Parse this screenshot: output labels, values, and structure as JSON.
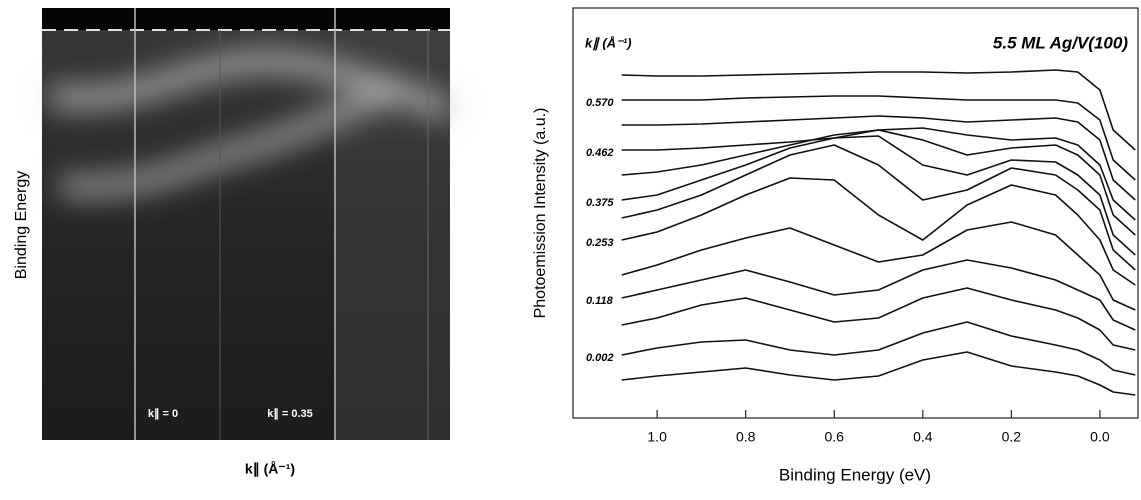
{
  "chart_data": [
    {
      "type": "image",
      "ylabel": "Binding Energy",
      "xlabel": "k∥ (Å⁻¹)",
      "annotations": [
        "k∥ = 0",
        "k∥ = 0.35"
      ]
    },
    {
      "type": "line",
      "title": "5.5 ML Ag/V(100)",
      "legend_title": "k∥ (Å⁻¹)",
      "xlabel": "Binding Energy (eV)",
      "ylabel": "Photoemission Intensity (a.u.)",
      "xlim": [
        1.19,
        -0.086
      ],
      "ylim": [
        0,
        41
      ],
      "xticks": [
        {
          "value": 1,
          "label": "1.0"
        },
        0.8,
        0.6,
        0.4,
        0.2,
        {
          "value": 0,
          "label": "0.0"
        }
      ],
      "color": "#111111",
      "x": [
        1.08,
        1.0,
        0.9,
        0.8,
        0.7,
        0.6,
        0.5,
        0.4,
        0.3,
        0.2,
        0.1,
        0.05,
        0.0,
        -0.03,
        -0.08
      ],
      "series": [
        {
          "values": [
            34.3,
            34.2,
            34.2,
            34.3,
            34.4,
            34.5,
            34.6,
            34.6,
            34.5,
            34.6,
            34.8,
            34.6,
            32.8,
            28.8,
            26.8
          ]
        },
        {
          "name": "0.570",
          "values": [
            31.8,
            31.8,
            31.8,
            32.0,
            32.1,
            32.2,
            32.2,
            32.0,
            31.8,
            31.8,
            31.8,
            31.5,
            29.8,
            25.8,
            23.8
          ]
        },
        {
          "values": [
            29.3,
            29.3,
            29.4,
            29.6,
            29.8,
            30.0,
            30.2,
            30.0,
            29.6,
            29.8,
            30.0,
            29.6,
            27.8,
            23.8,
            21.8
          ]
        },
        {
          "name": "0.462",
          "values": [
            26.8,
            26.8,
            27.0,
            27.3,
            27.6,
            28.0,
            28.8,
            29.0,
            28.3,
            27.8,
            28.0,
            27.3,
            25.3,
            21.8,
            19.8
          ]
        },
        {
          "values": [
            24.3,
            24.6,
            25.3,
            26.3,
            27.3,
            28.3,
            28.8,
            27.8,
            26.3,
            27.0,
            27.3,
            26.3,
            24.3,
            20.3,
            18.3
          ]
        },
        {
          "name": "0.375",
          "values": [
            21.8,
            22.3,
            23.8,
            25.3,
            27.0,
            28.0,
            28.2,
            25.3,
            24.3,
            25.8,
            25.6,
            24.3,
            22.3,
            18.3,
            16.3
          ]
        },
        {
          "values": [
            20.0,
            20.8,
            22.3,
            24.3,
            26.3,
            27.3,
            25.3,
            21.8,
            22.8,
            25.0,
            24.3,
            22.8,
            20.8,
            16.8,
            14.8
          ]
        },
        {
          "name": "0.253",
          "values": [
            17.8,
            18.6,
            20.3,
            22.3,
            24.0,
            23.8,
            20.3,
            17.8,
            21.3,
            23.3,
            22.3,
            20.3,
            17.8,
            14.8,
            13.3
          ]
        },
        {
          "values": [
            14.3,
            15.3,
            16.8,
            18.0,
            19.0,
            17.3,
            15.6,
            16.3,
            18.8,
            19.6,
            18.3,
            16.3,
            14.3,
            11.8,
            10.8
          ]
        },
        {
          "name": "0.118",
          "values": [
            12.0,
            12.8,
            13.8,
            14.8,
            13.6,
            12.3,
            12.8,
            14.8,
            15.8,
            15.0,
            13.8,
            12.8,
            11.8,
            9.8,
            8.8
          ]
        },
        {
          "values": [
            9.3,
            10.0,
            11.3,
            12.0,
            10.8,
            9.6,
            10.0,
            12.0,
            13.0,
            11.8,
            10.8,
            10.0,
            8.8,
            7.3,
            6.8
          ]
        },
        {
          "name": "0.002",
          "values": [
            6.3,
            7.0,
            7.6,
            7.8,
            6.8,
            6.3,
            6.8,
            8.5,
            9.6,
            8.2,
            7.3,
            6.8,
            5.8,
            4.8,
            4.3
          ]
        },
        {
          "values": [
            3.8,
            4.2,
            4.6,
            5.0,
            4.3,
            3.8,
            4.2,
            5.8,
            6.6,
            5.2,
            4.6,
            4.2,
            3.3,
            2.6,
            2.3
          ]
        }
      ]
    }
  ]
}
